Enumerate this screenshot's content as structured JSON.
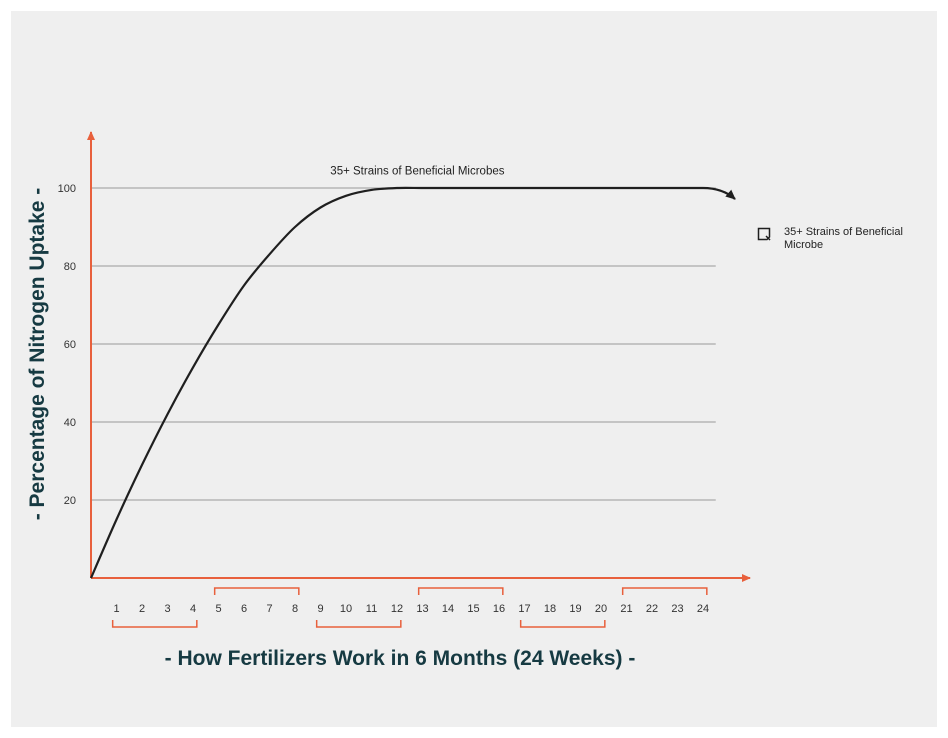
{
  "chart_data": {
    "type": "line",
    "title": "",
    "xlabel": "- How Fertilizers Work in 6 Months (24 Weeks) -",
    "ylabel": "- Percentage of Nitrogen Uptake -",
    "x": [
      0,
      1,
      2,
      3,
      4,
      5,
      6,
      7,
      8,
      9,
      10,
      11,
      12,
      13,
      14,
      15,
      16,
      17,
      18,
      19,
      20,
      21,
      22,
      23,
      24
    ],
    "series": [
      {
        "name": "35+ Strains of Beneficial Microbe",
        "values": [
          0,
          15,
          29,
          42,
          54,
          65,
          75,
          83,
          90,
          95,
          98,
          99.5,
          100,
          100,
          100,
          100,
          100,
          100,
          100,
          100,
          100,
          100,
          100,
          100,
          100
        ]
      }
    ],
    "xlim": [
      0,
      24
    ],
    "ylim": [
      0,
      110
    ],
    "x_ticks": [
      "1",
      "2",
      "3",
      "4",
      "5",
      "6",
      "7",
      "8",
      "9",
      "10",
      "11",
      "12",
      "13",
      "14",
      "15",
      "16",
      "17",
      "18",
      "19",
      "20",
      "21",
      "22",
      "23",
      "24"
    ],
    "y_ticks": [
      "20",
      "40",
      "60",
      "80",
      "100"
    ],
    "y_tick_values": [
      20,
      40,
      60,
      80,
      100
    ],
    "annotations": [
      {
        "text": "35+ Strains of Beneficial Microbes",
        "x": 12.8,
        "y": 103.5
      }
    ],
    "month_groups": [
      [
        1,
        4
      ],
      [
        5,
        8
      ],
      [
        9,
        12
      ],
      [
        13,
        16
      ],
      [
        17,
        20
      ],
      [
        21,
        24
      ]
    ],
    "grid": true,
    "legend": {
      "position": "right",
      "entries": [
        "35+ Strains of Beneficial Microbe"
      ]
    },
    "colors": {
      "axis": "#e8603c",
      "line": "#1f1f1f",
      "grid": "#9a9a9a",
      "title": "#163a42",
      "tick": "#333333"
    }
  }
}
